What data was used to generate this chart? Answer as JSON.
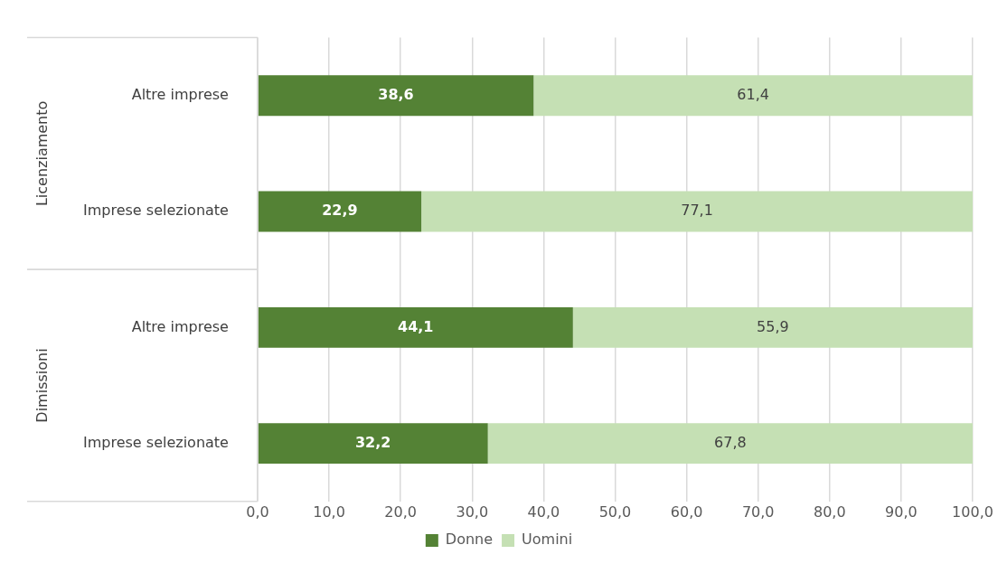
{
  "chart_data": {
    "type": "bar",
    "orientation": "horizontal",
    "stacked": true,
    "categories": [
      "Altre imprese",
      "Imprese selezionate",
      "Altre imprese",
      "Imprese selezionate"
    ],
    "series": [
      {
        "name": "Donne",
        "color": "#548235",
        "values": [
          38.6,
          22.9,
          44.1,
          32.2
        ],
        "value_labels": [
          "38,6",
          "22,9",
          "44,1",
          "32,2"
        ]
      },
      {
        "name": "Uomini",
        "color": "#c5e0b4",
        "values": [
          61.4,
          77.1,
          55.9,
          67.8
        ],
        "value_labels": [
          "61,4",
          "77,1",
          "55,9",
          "67,8"
        ]
      }
    ],
    "xlim": [
      0,
      100
    ],
    "xticks": [
      {
        "value": 0,
        "label": "0,0"
      },
      {
        "value": 10,
        "label": "10,0"
      },
      {
        "value": 20,
        "label": "20,0"
      },
      {
        "value": 30,
        "label": "30,0"
      },
      {
        "value": 40,
        "label": "40,0"
      },
      {
        "value": 50,
        "label": "50,0"
      },
      {
        "value": 60,
        "label": "60,0"
      },
      {
        "value": 70,
        "label": "70,0"
      },
      {
        "value": 80,
        "label": "80,0"
      },
      {
        "value": 90,
        "label": "90,0"
      },
      {
        "value": 100,
        "label": "100,0"
      }
    ],
    "annotations": [
      "Licenziamento",
      "Dimissioni"
    ],
    "grid": "x",
    "legend": "bottom"
  }
}
